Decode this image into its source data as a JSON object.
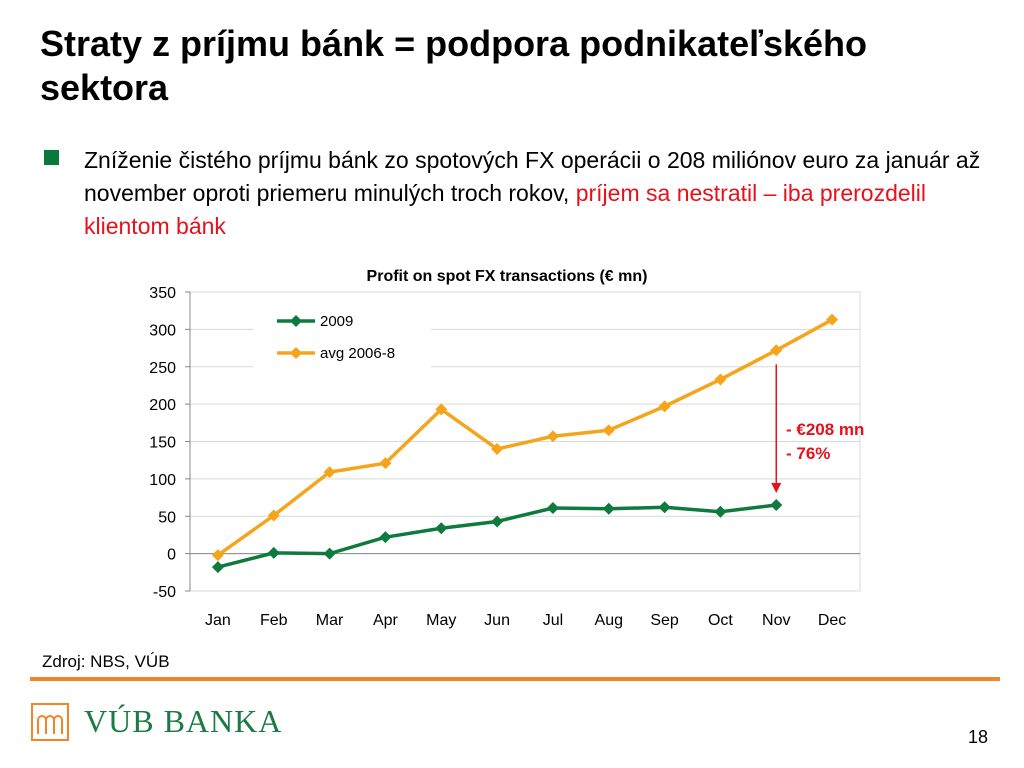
{
  "slide": {
    "title": "Straty z príjmu bánk = podpora podnikateľského sektora",
    "bullet_black": "Zníženie čistého príjmu bánk zo spotových FX operácii o 208 miliónov euro za január až november oproti priemeru minulých troch rokov,",
    "bullet_red": "príjem sa nestratil – iba prerozdelil klientom bánk",
    "source": "Zdroj: NBS, VÚB",
    "logo_text": "VÚB BANKA",
    "page_number": "18"
  },
  "colors": {
    "accent_orange": "#f0862a",
    "brand_green": "#1c7a44",
    "highlight_red": "#e8101a",
    "series_2009": "#0e7a3e",
    "series_avg": "#f5a51c"
  },
  "chart_data": {
    "type": "line",
    "title": "Profit on spot FX transactions (€  mn)",
    "categories": [
      "Jan",
      "Feb",
      "Mar",
      "Apr",
      "May",
      "Jun",
      "Jul",
      "Aug",
      "Sep",
      "Oct",
      "Nov",
      "Dec"
    ],
    "series": [
      {
        "name": "2009",
        "values": [
          -18,
          1,
          0,
          22,
          34,
          43,
          61,
          60,
          62,
          56,
          65,
          null
        ],
        "color": "#0e7a3e",
        "marker": "diamond"
      },
      {
        "name": "avg 2006-8",
        "values": [
          -2,
          51,
          109,
          121,
          193,
          140,
          157,
          165,
          197,
          233,
          272,
          313
        ],
        "color": "#f5a51c",
        "marker": "diamond"
      }
    ],
    "ylim": [
      -50,
      350
    ],
    "yticks": [
      -50,
      0,
      50,
      100,
      150,
      200,
      250,
      300,
      350
    ],
    "grid": true,
    "legend_position": "top-left",
    "annotation": {
      "lines": [
        "- €208 mn",
        "- 76%"
      ],
      "color": "#e8101a",
      "arrow_category": "Nov",
      "arrow_from": 272,
      "arrow_to": 65
    }
  }
}
